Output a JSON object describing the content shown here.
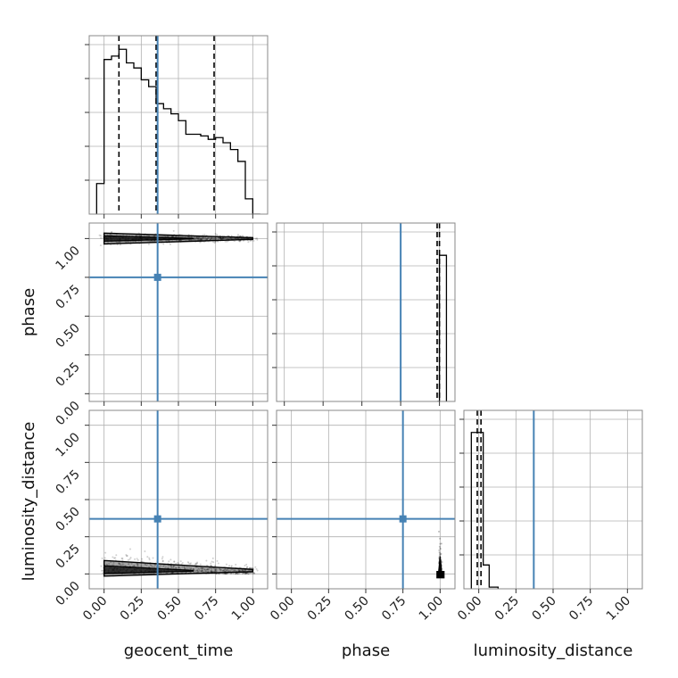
{
  "figure": {
    "colors": {
      "truth": "#4682b4",
      "hist": "#000000",
      "grid": "#b0b0b0",
      "frame": "#888888",
      "scatter": "#000000"
    }
  },
  "chart_data": {
    "type": "corner",
    "parameters": [
      "geocent_time",
      "phase",
      "luminosity_distance"
    ],
    "tick_values": [
      0.0,
      0.25,
      0.5,
      0.75,
      1.0
    ],
    "tick_labels": [
      "0.00",
      "0.25",
      "0.50",
      "0.75",
      "1.00"
    ],
    "grid": true,
    "truths": {
      "geocent_time": 0.36,
      "phase": 0.75,
      "luminosity_distance": 0.37
    },
    "panels": [
      {
        "id": "hist-geocent_time",
        "type": "histogram",
        "param": "geocent_time",
        "xlim": [
          -0.1,
          1.1
        ],
        "bin_edges": [
          -0.05,
          0.0,
          0.05,
          0.1,
          0.15,
          0.2,
          0.25,
          0.3,
          0.35,
          0.4,
          0.45,
          0.5,
          0.55,
          0.6,
          0.65,
          0.7,
          0.75,
          0.8,
          0.85,
          0.9,
          0.95,
          1.0,
          1.05
        ],
        "counts": [
          0.18,
          0.91,
          0.93,
          0.97,
          0.89,
          0.86,
          0.79,
          0.75,
          0.65,
          0.62,
          0.59,
          0.55,
          0.47,
          0.47,
          0.46,
          0.44,
          0.45,
          0.42,
          0.38,
          0.31,
          0.09,
          0.0
        ],
        "quantiles": [
          0.1,
          0.35,
          0.74
        ]
      },
      {
        "id": "scatter-phase-vs-geocent_time",
        "type": "2d",
        "x_param": "geocent_time",
        "y_param": "phase",
        "xlim": [
          -0.1,
          1.1
        ],
        "ylim": [
          -0.05,
          1.1
        ],
        "band_center": 1.0,
        "band_x": [
          0.0,
          1.0
        ]
      },
      {
        "id": "hist-phase",
        "type": "histogram",
        "param": "phase",
        "xlim": [
          -0.05,
          1.1
        ],
        "bin_edges": [
          0.985,
          1.0,
          1.045
        ],
        "counts": [
          0.0,
          0.86
        ],
        "quantiles": [
          0.985,
          1.0
        ]
      },
      {
        "id": "scatter-luminosity_distance-vs-geocent_time",
        "type": "2d",
        "x_param": "geocent_time",
        "y_param": "luminosity_distance",
        "xlim": [
          -0.1,
          1.1
        ],
        "ylim": [
          -0.1,
          1.1
        ],
        "band_center": 0.02,
        "band_x": [
          0.0,
          1.0
        ]
      },
      {
        "id": "scatter-luminosity_distance-vs-phase",
        "type": "2d",
        "x_param": "phase",
        "y_param": "luminosity_distance",
        "xlim": [
          -0.1,
          1.1
        ],
        "ylim": [
          -0.1,
          1.1
        ],
        "band_center": 0.0,
        "band_x": [
          1.0,
          1.0
        ]
      },
      {
        "id": "hist-luminosity_distance",
        "type": "histogram",
        "param": "luminosity_distance",
        "xlim": [
          -0.1,
          1.1
        ],
        "bin_edges": [
          -0.05,
          0.0,
          0.03,
          0.07,
          0.13
        ],
        "counts": [
          0.92,
          0.92,
          0.14,
          0.01
        ],
        "quantiles": [
          -0.01,
          0.015
        ]
      }
    ]
  }
}
